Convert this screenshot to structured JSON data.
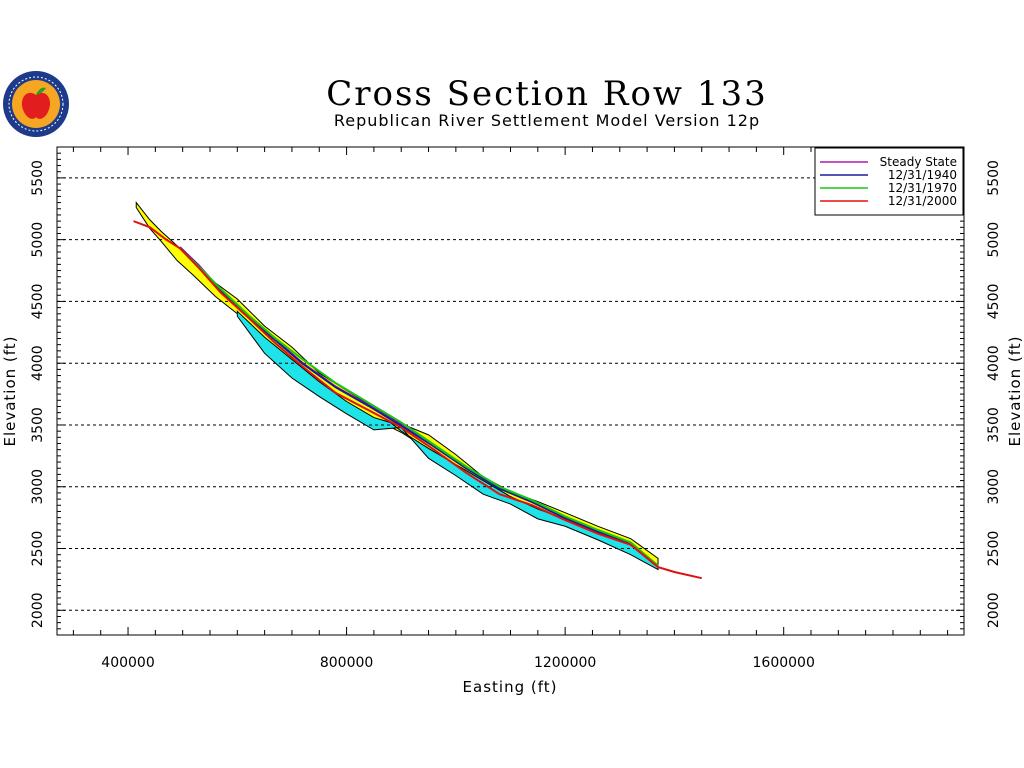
{
  "logo": {
    "icon": "apple-seal-icon",
    "colors": {
      "ring": "#1e3a8a",
      "inner": "#f5a623",
      "apple": "#e11d1d",
      "leaf": "#22a02a"
    }
  },
  "chart_data": {
    "type": "line",
    "title": "Cross Section Row 133",
    "subtitle": "Republican River Settlement Model Version 12p",
    "xlabel": "Easting (ft)",
    "ylabel": "Elevation (ft)",
    "xlim": [
      270000,
      1930000
    ],
    "ylim": [
      1800,
      5750
    ],
    "xticks": [
      400000,
      800000,
      1200000,
      1600000
    ],
    "xtick_labels": [
      "400000",
      "800000",
      "1200000",
      "1600000"
    ],
    "yticks": [
      2000,
      2500,
      3000,
      3500,
      4000,
      4500,
      5000,
      5500
    ],
    "ytick_labels": [
      "2000",
      "2500",
      "3000",
      "3500",
      "4000",
      "4500",
      "5000",
      "5500"
    ],
    "grid": "horizontal-dashed",
    "legend_position": "top-right",
    "layers": {
      "yellow_layer": {
        "color": "#ffff00",
        "top": [
          [
            415000,
            5300
          ],
          [
            440000,
            5160
          ],
          [
            460000,
            5070
          ],
          [
            490000,
            4950
          ],
          [
            520000,
            4820
          ],
          [
            560000,
            4650
          ],
          [
            600000,
            4520
          ],
          [
            650000,
            4300
          ],
          [
            700000,
            4130
          ],
          [
            750000,
            3920
          ],
          [
            800000,
            3780
          ],
          [
            850000,
            3640
          ],
          [
            900000,
            3510
          ],
          [
            950000,
            3420
          ],
          [
            1000000,
            3260
          ],
          [
            1050000,
            3080
          ],
          [
            1100000,
            2960
          ],
          [
            1150000,
            2880
          ],
          [
            1200000,
            2790
          ],
          [
            1260000,
            2680
          ],
          [
            1320000,
            2580
          ],
          [
            1370000,
            2420
          ]
        ],
        "bottom": [
          [
            415000,
            5260
          ],
          [
            440000,
            5090
          ],
          [
            460000,
            4990
          ],
          [
            490000,
            4830
          ],
          [
            520000,
            4710
          ],
          [
            560000,
            4540
          ],
          [
            600000,
            4400
          ],
          [
            650000,
            4200
          ],
          [
            700000,
            4020
          ],
          [
            750000,
            3840
          ],
          [
            800000,
            3680
          ],
          [
            850000,
            3550
          ],
          [
            900000,
            3440
          ],
          [
            950000,
            3300
          ],
          [
            1000000,
            3170
          ],
          [
            1050000,
            3040
          ],
          [
            1100000,
            2910
          ],
          [
            1150000,
            2810
          ],
          [
            1200000,
            2730
          ],
          [
            1260000,
            2620
          ],
          [
            1320000,
            2530
          ],
          [
            1370000,
            2340
          ]
        ]
      },
      "cyan_layer": {
        "color": "#1ee3e8",
        "top": [
          [
            600000,
            4420
          ],
          [
            650000,
            4210
          ],
          [
            700000,
            4030
          ],
          [
            750000,
            3850
          ],
          [
            800000,
            3690
          ],
          [
            850000,
            3560
          ],
          [
            880000,
            3520
          ],
          [
            900000,
            3450
          ],
          [
            950000,
            3310
          ],
          [
            1000000,
            3180
          ],
          [
            1050000,
            3050
          ],
          [
            1100000,
            2920
          ],
          [
            1150000,
            2820
          ],
          [
            1200000,
            2740
          ],
          [
            1260000,
            2630
          ],
          [
            1320000,
            2540
          ],
          [
            1370000,
            2350
          ]
        ],
        "bottom": [
          [
            600000,
            4380
          ],
          [
            650000,
            4080
          ],
          [
            700000,
            3880
          ],
          [
            750000,
            3730
          ],
          [
            800000,
            3590
          ],
          [
            850000,
            3460
          ],
          [
            900000,
            3480
          ],
          [
            950000,
            3230
          ],
          [
            1000000,
            3090
          ],
          [
            1050000,
            2940
          ],
          [
            1100000,
            2860
          ],
          [
            1150000,
            2740
          ],
          [
            1200000,
            2680
          ],
          [
            1260000,
            2570
          ],
          [
            1320000,
            2450
          ],
          [
            1370000,
            2330
          ]
        ]
      }
    },
    "series": [
      {
        "name": "Steady State",
        "color": "#b018b0",
        "values": [
          [
            495000,
            4940
          ],
          [
            530000,
            4790
          ],
          [
            570000,
            4590
          ],
          [
            620000,
            4380
          ],
          [
            670000,
            4190
          ],
          [
            720000,
            4000
          ],
          [
            780000,
            3810
          ],
          [
            840000,
            3660
          ],
          [
            900000,
            3500
          ],
          [
            960000,
            3330
          ],
          [
            1020000,
            3150
          ],
          [
            1080000,
            2990
          ],
          [
            1140000,
            2880
          ],
          [
            1200000,
            2750
          ],
          [
            1260000,
            2640
          ],
          [
            1320000,
            2540
          ],
          [
            1370000,
            2360
          ]
        ]
      },
      {
        "name": "12/31/1940",
        "color": "#1a1aa0",
        "values": [
          [
            495000,
            4935
          ],
          [
            530000,
            4785
          ],
          [
            570000,
            4585
          ],
          [
            620000,
            4375
          ],
          [
            670000,
            4185
          ],
          [
            720000,
            3995
          ],
          [
            780000,
            3805
          ],
          [
            840000,
            3655
          ],
          [
            900000,
            3495
          ],
          [
            960000,
            3325
          ],
          [
            1020000,
            3145
          ],
          [
            1080000,
            2985
          ],
          [
            1140000,
            2875
          ],
          [
            1200000,
            2745
          ],
          [
            1260000,
            2635
          ],
          [
            1320000,
            2535
          ],
          [
            1370000,
            2355
          ]
        ]
      },
      {
        "name": "12/31/1970",
        "color": "#14c814",
        "values": [
          [
            495000,
            4930
          ],
          [
            530000,
            4780
          ],
          [
            570000,
            4600
          ],
          [
            620000,
            4390
          ],
          [
            670000,
            4200
          ],
          [
            720000,
            4030
          ],
          [
            780000,
            3840
          ],
          [
            840000,
            3680
          ],
          [
            900000,
            3520
          ],
          [
            960000,
            3340
          ],
          [
            1020000,
            3160
          ],
          [
            1080000,
            3000
          ],
          [
            1140000,
            2890
          ],
          [
            1200000,
            2760
          ],
          [
            1260000,
            2650
          ],
          [
            1320000,
            2550
          ],
          [
            1370000,
            2360
          ]
        ]
      },
      {
        "name": "12/31/2000",
        "color": "#e01010",
        "values": [
          [
            410000,
            5150
          ],
          [
            440000,
            5100
          ],
          [
            470000,
            5000
          ],
          [
            495000,
            4930
          ],
          [
            530000,
            4770
          ],
          [
            570000,
            4570
          ],
          [
            620000,
            4370
          ],
          [
            670000,
            4160
          ],
          [
            720000,
            3970
          ],
          [
            780000,
            3760
          ],
          [
            840000,
            3620
          ],
          [
            900000,
            3480
          ],
          [
            960000,
            3300
          ],
          [
            1020000,
            3110
          ],
          [
            1080000,
            2940
          ],
          [
            1140000,
            2850
          ],
          [
            1200000,
            2730
          ],
          [
            1260000,
            2620
          ],
          [
            1320000,
            2530
          ],
          [
            1370000,
            2350
          ],
          [
            1400000,
            2310
          ],
          [
            1450000,
            2260
          ]
        ]
      }
    ]
  }
}
